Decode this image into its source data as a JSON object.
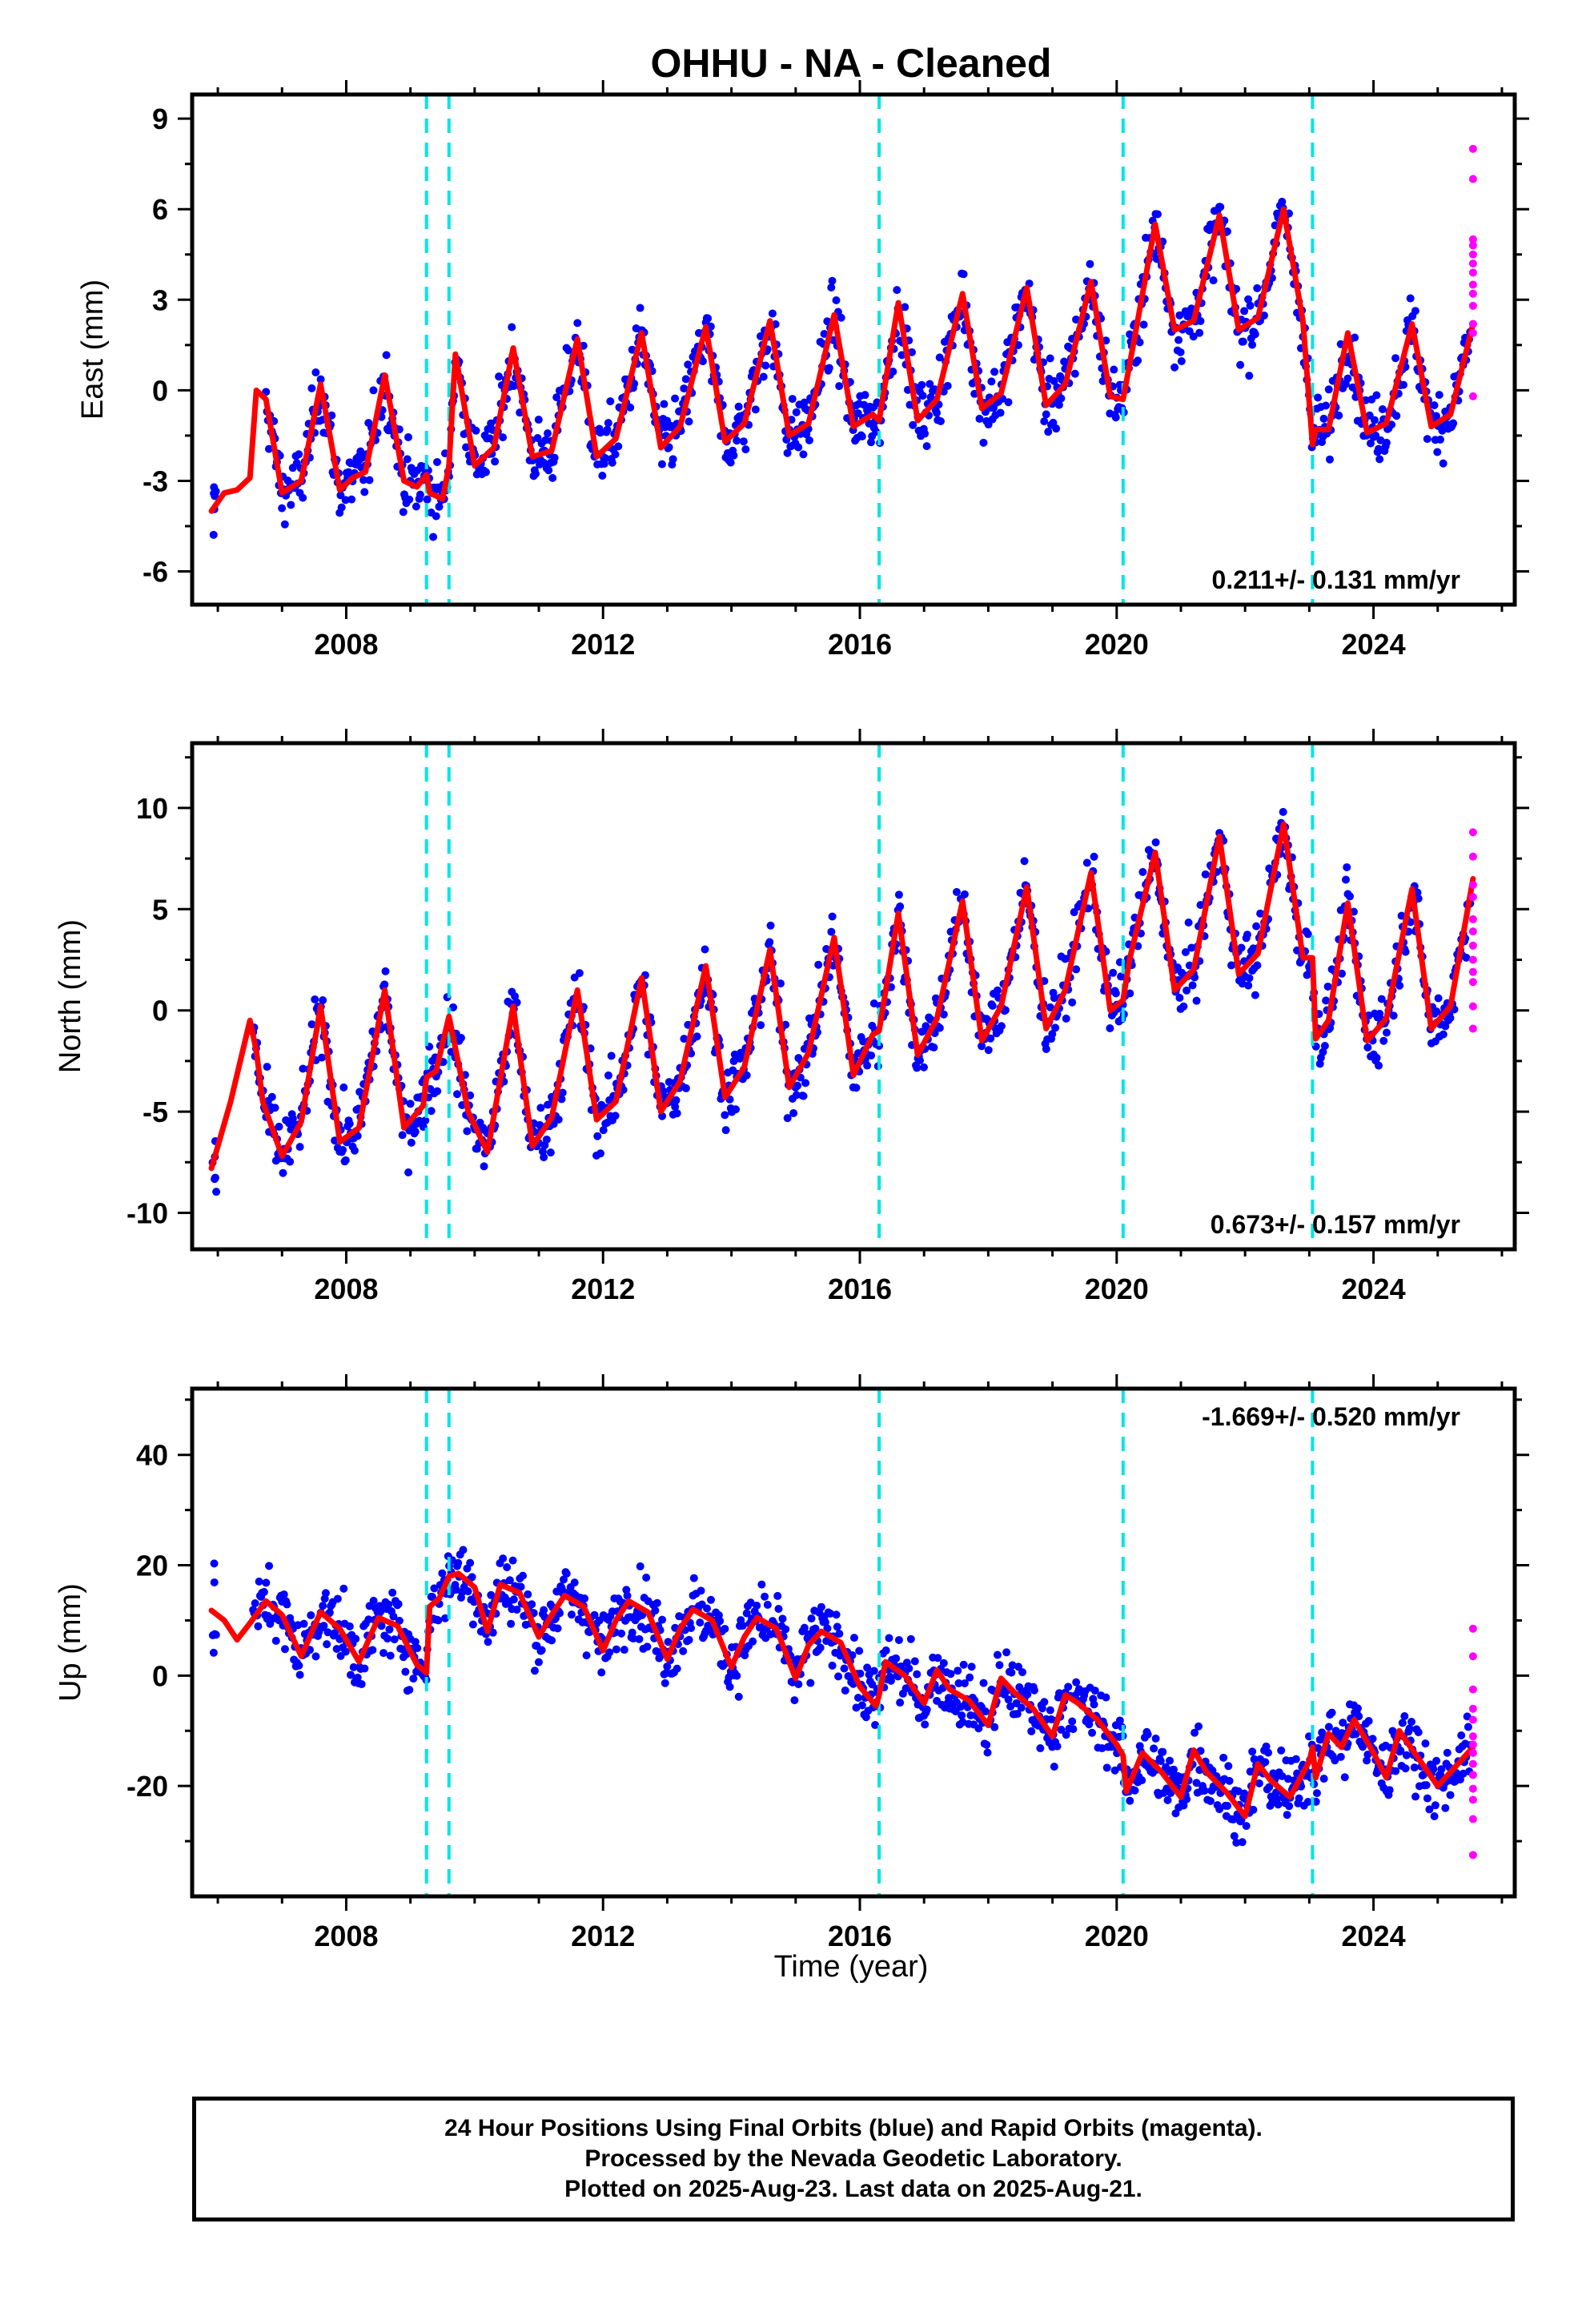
{
  "title": "OHHU  - NA - Cleaned",
  "xlabel": "Time (year)",
  "footer": [
    "24 Hour Positions Using Final Orbits (blue) and Rapid Orbits (magenta).",
    "Processed by the Nevada Geodetic Laboratory.",
    "Plotted on 2025-Aug-23. Last data on 2025-Aug-21."
  ],
  "colors": {
    "final_orbits": "#0000ff",
    "rapid_orbits": "#ff00ff",
    "model": "#ff0000",
    "steps": "#00e5e5"
  },
  "chart_data": [
    {
      "type": "scatter",
      "ylabel": "East (mm)",
      "xlim": [
        2005.6,
        2026.2
      ],
      "ylim": [
        -7.1,
        9.8
      ],
      "xticks": [
        2008,
        2012,
        2016,
        2020,
        2024
      ],
      "yticks": [
        -6,
        -3,
        0,
        3,
        6,
        9
      ],
      "rate": "0.211+/- 0.131 mm/yr",
      "steps": [
        2009.25,
        2009.6,
        2016.3,
        2020.1,
        2023.05
      ],
      "model": {
        "x": [
          2005.9,
          2006.1,
          2006.3,
          2006.5,
          2006.6,
          2006.75,
          2007.0,
          2007.3,
          2007.6,
          2007.9,
          2008.1,
          2008.3,
          2008.6,
          2008.9,
          2009.1,
          2009.25,
          2009.3,
          2009.5,
          2009.6,
          2009.7,
          2010.0,
          2010.3,
          2010.6,
          2010.9,
          2011.2,
          2011.6,
          2011.9,
          2012.2,
          2012.6,
          2012.9,
          2013.2,
          2013.6,
          2013.9,
          2014.2,
          2014.6,
          2014.9,
          2015.2,
          2015.6,
          2015.9,
          2016.2,
          2016.3,
          2016.6,
          2016.9,
          2017.2,
          2017.6,
          2017.9,
          2018.2,
          2018.6,
          2018.9,
          2019.2,
          2019.6,
          2019.9,
          2020.1,
          2020.3,
          2020.6,
          2020.9,
          2021.2,
          2021.6,
          2021.9,
          2022.2,
          2022.6,
          2022.9,
          2023.05,
          2023.1,
          2023.3,
          2023.6,
          2023.9,
          2024.2,
          2024.6,
          2024.9,
          2025.2,
          2025.55
        ],
        "y": [
          -4.0,
          -3.4,
          -3.3,
          -2.9,
          0.0,
          -0.3,
          -3.4,
          -3.0,
          0.2,
          -3.3,
          -2.9,
          -2.7,
          0.5,
          -3.0,
          -3.2,
          -2.8,
          -3.4,
          -3.6,
          -2.5,
          1.2,
          -2.5,
          -1.9,
          1.4,
          -2.2,
          -2.0,
          1.7,
          -2.2,
          -1.6,
          1.9,
          -1.9,
          -1.2,
          2.1,
          -1.7,
          -1.1,
          2.3,
          -1.5,
          -1.1,
          2.5,
          -1.2,
          -0.8,
          -1.0,
          2.9,
          -1.0,
          -0.3,
          3.2,
          -0.6,
          -0.1,
          3.4,
          -0.5,
          0.2,
          3.6,
          -0.2,
          -0.3,
          2.0,
          5.5,
          2.0,
          2.3,
          5.8,
          2.0,
          2.4,
          6.0,
          2.3,
          -1.8,
          -1.3,
          -1.3,
          1.9,
          -1.4,
          -1.1,
          2.2,
          -1.2,
          -0.8,
          2.2
        ]
      },
      "rapid_points": [
        8.0,
        7.0,
        5.0,
        4.8,
        4.5,
        4.2,
        3.9,
        3.5,
        3.2,
        2.8,
        2.2,
        1.9,
        -0.2
      ]
    },
    {
      "type": "scatter",
      "ylabel": "North (mm)",
      "xlim": [
        2005.6,
        2026.2
      ],
      "ylim": [
        -11.8,
        13.2
      ],
      "xticks": [
        2008,
        2012,
        2016,
        2020,
        2024
      ],
      "yticks": [
        -10,
        -5,
        0,
        5,
        10
      ],
      "rate": "0.673+/- 0.157 mm/yr",
      "steps": [
        2009.25,
        2009.6,
        2016.3,
        2020.1,
        2023.05
      ],
      "model": {
        "x": [
          2005.9,
          2006.2,
          2006.5,
          2006.6,
          2006.7,
          2007.0,
          2007.3,
          2007.6,
          2007.9,
          2008.2,
          2008.6,
          2008.9,
          2009.2,
          2009.25,
          2009.4,
          2009.6,
          2009.9,
          2010.2,
          2010.6,
          2010.9,
          2011.2,
          2011.6,
          2011.9,
          2012.2,
          2012.6,
          2012.9,
          2013.2,
          2013.6,
          2013.9,
          2014.2,
          2014.6,
          2014.9,
          2015.2,
          2015.6,
          2015.9,
          2016.2,
          2016.3,
          2016.6,
          2016.9,
          2017.2,
          2017.6,
          2017.9,
          2018.2,
          2018.6,
          2018.9,
          2019.2,
          2019.6,
          2019.9,
          2020.1,
          2020.2,
          2020.6,
          2020.9,
          2021.2,
          2021.6,
          2021.9,
          2022.2,
          2022.6,
          2022.9,
          2023.05,
          2023.1,
          2023.3,
          2023.6,
          2023.9,
          2024.2,
          2024.6,
          2024.9,
          2025.2,
          2025.55
        ],
        "y": [
          -7.8,
          -4.5,
          -0.5,
          -2.0,
          -4.5,
          -7.2,
          -5.5,
          0.2,
          -6.5,
          -5.8,
          1.0,
          -5.8,
          -4.7,
          -3.3,
          -3.0,
          -0.3,
          -5.0,
          -7.0,
          0.2,
          -6.7,
          -5.3,
          1.0,
          -5.4,
          -4.5,
          1.6,
          -5.0,
          -3.5,
          2.2,
          -4.3,
          -2.8,
          3.0,
          -3.8,
          -2.1,
          3.6,
          -3.2,
          -1.2,
          -1.0,
          4.8,
          -2.2,
          -0.4,
          5.4,
          -1.5,
          0.2,
          6.1,
          -0.9,
          1.0,
          6.8,
          0.0,
          0.5,
          2.5,
          7.8,
          1.0,
          2.0,
          8.6,
          1.8,
          2.8,
          9.2,
          2.6,
          2.6,
          -1.4,
          -0.5,
          5.3,
          -1.5,
          -0.4,
          6.0,
          -0.9,
          0.2,
          6.5
        ]
      },
      "rapid_points": [
        8.8,
        7.6,
        6.2,
        5.6,
        4.5,
        3.9,
        3.2,
        2.5,
        1.9,
        1.4,
        0.2,
        -0.9
      ]
    },
    {
      "type": "scatter",
      "ylabel": "Up (mm)",
      "xlim": [
        2005.6,
        2026.2
      ],
      "ylim": [
        -40.0,
        52.0
      ],
      "xticks": [
        2008,
        2012,
        2016,
        2020,
        2024
      ],
      "yticks": [
        -20,
        0,
        20,
        40
      ],
      "rate": "-1.669+/- 0.520 mm/yr",
      "steps": [
        2009.25,
        2009.6,
        2016.3,
        2020.1,
        2023.05
      ],
      "model": {
        "x": [
          2005.9,
          2006.1,
          2006.3,
          2006.5,
          2006.75,
          2007.0,
          2007.3,
          2007.6,
          2007.9,
          2008.2,
          2008.5,
          2008.8,
          2009.1,
          2009.2,
          2009.25,
          2009.3,
          2009.45,
          2009.6,
          2009.75,
          2010.0,
          2010.2,
          2010.4,
          2010.7,
          2011.0,
          2011.2,
          2011.4,
          2011.7,
          2012.0,
          2012.2,
          2012.4,
          2012.7,
          2013.0,
          2013.2,
          2013.4,
          2013.7,
          2014.0,
          2014.2,
          2014.4,
          2014.7,
          2015.0,
          2015.2,
          2015.4,
          2015.7,
          2016.0,
          2016.25,
          2016.3,
          2016.4,
          2016.7,
          2017.0,
          2017.2,
          2017.4,
          2017.7,
          2018.0,
          2018.2,
          2018.4,
          2018.7,
          2019.0,
          2019.2,
          2019.4,
          2019.7,
          2020.0,
          2020.1,
          2020.15,
          2020.4,
          2020.7,
          2021.0,
          2021.2,
          2021.4,
          2021.7,
          2022.0,
          2022.2,
          2022.4,
          2022.7,
          2023.0,
          2023.05,
          2023.1,
          2023.3,
          2023.5,
          2023.7,
          2024.0,
          2024.2,
          2024.4,
          2024.7,
          2025.0,
          2025.2,
          2025.55
        ],
        "y": [
          11.8,
          10.0,
          6.5,
          9.5,
          13.5,
          11.0,
          3.5,
          11.5,
          8.5,
          2.5,
          10.5,
          9.0,
          2.0,
          1.0,
          0.5,
          12.5,
          14.0,
          18.0,
          18.5,
          16.0,
          8.0,
          16.5,
          15.0,
          7.0,
          11.0,
          14.5,
          12.5,
          4.5,
          10.0,
          13.5,
          11.5,
          3.0,
          8.5,
          12.0,
          10.0,
          1.5,
          7.0,
          10.5,
          8.5,
          -0.5,
          5.5,
          8.0,
          6.0,
          -2.0,
          -5.5,
          -3.5,
          2.5,
          0.0,
          -5.0,
          1.0,
          -2.5,
          -4.5,
          -9.0,
          -0.5,
          -3.0,
          -6.0,
          -11.0,
          -3.5,
          -5.0,
          -8.0,
          -12.5,
          -14.5,
          -21.0,
          -14.0,
          -17.5,
          -22.0,
          -13.5,
          -17.5,
          -21.0,
          -25.5,
          -16.0,
          -19.0,
          -22.0,
          -15.5,
          -13.0,
          -18.5,
          -10.5,
          -13.0,
          -8.0,
          -14.0,
          -18.5,
          -10.0,
          -15.0,
          -20.0,
          -17.5,
          -13.0
        ]
      },
      "rapid_points": [
        8.5,
        3.5,
        -2.5,
        -6.0,
        -8.0,
        -11.0,
        -12.5,
        -14.0,
        -16.0,
        -18.0,
        -20.5,
        -22.5,
        -26.0,
        -32.5
      ]
    }
  ]
}
